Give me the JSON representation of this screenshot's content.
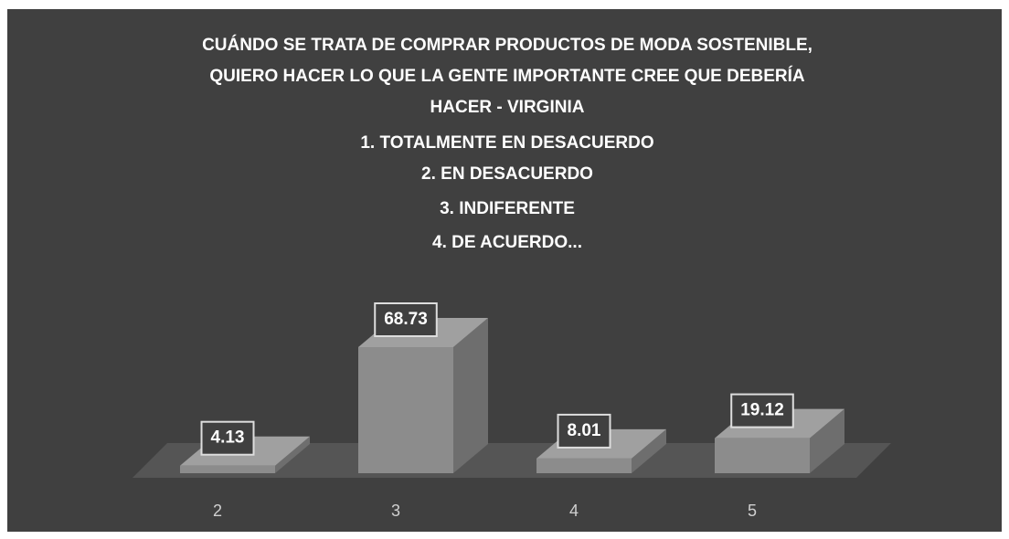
{
  "chart_data": {
    "type": "bar3d",
    "title": [
      "CUÁNDO SE TRATA DE COMPRAR PRODUCTOS DE MODA SOSTENIBLE,",
      "QUIERO HACER LO QUE LA GENTE IMPORTANTE CREE QUE DEBERÍA",
      "HACER - VIRGINIA",
      "1. TOTALMENTE EN DESACUERDO",
      "2. EN DESACUERDO",
      "3. INDIFERENTE",
      "4. DE ACUERDO..."
    ],
    "categories": [
      "2",
      "3",
      "4",
      "5"
    ],
    "values": [
      4.13,
      68.73,
      8.01,
      19.12
    ],
    "color": "#8c8c8c"
  }
}
